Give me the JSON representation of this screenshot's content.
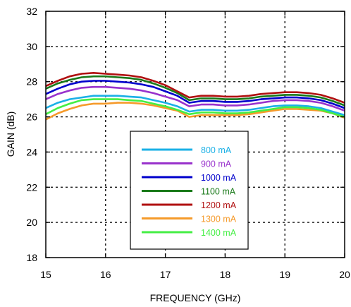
{
  "chart_data": {
    "type": "line",
    "xlabel": "FREQUENCY (GHz)",
    "ylabel": "GAIN (dB)",
    "xlim": [
      15,
      20
    ],
    "ylim": [
      18,
      32
    ],
    "xticks": [
      "15",
      "16",
      "17",
      "18",
      "19",
      "20"
    ],
    "yticks": [
      "18",
      "20",
      "22",
      "24",
      "26",
      "28",
      "30",
      "32"
    ],
    "grid": true,
    "legend_position": "center-bottom",
    "x": [
      15.0,
      15.2,
      15.4,
      15.6,
      15.8,
      16.0,
      16.2,
      16.4,
      16.6,
      16.8,
      17.0,
      17.2,
      17.4,
      17.6,
      17.8,
      18.0,
      18.2,
      18.4,
      18.6,
      18.8,
      19.0,
      19.2,
      19.4,
      19.6,
      19.8,
      20.0
    ],
    "series": [
      {
        "name": "800 mA",
        "color": "#1ab0e6",
        "values": [
          26.5,
          26.8,
          27.0,
          27.1,
          27.2,
          27.2,
          27.2,
          27.15,
          27.1,
          26.95,
          26.8,
          26.6,
          26.3,
          26.4,
          26.4,
          26.35,
          26.35,
          26.4,
          26.5,
          26.6,
          26.65,
          26.65,
          26.6,
          26.5,
          26.3,
          26.1
        ]
      },
      {
        "name": "900 mA",
        "color": "#9932cc",
        "values": [
          27.0,
          27.3,
          27.5,
          27.65,
          27.7,
          27.7,
          27.65,
          27.6,
          27.5,
          27.35,
          27.15,
          26.95,
          26.6,
          26.7,
          26.7,
          26.65,
          26.65,
          26.7,
          26.8,
          26.9,
          26.95,
          26.95,
          26.9,
          26.8,
          26.6,
          26.35
        ]
      },
      {
        "name": "1000 mA",
        "color": "#0000cc",
        "values": [
          27.3,
          27.6,
          27.85,
          28.0,
          28.05,
          28.05,
          28.0,
          27.95,
          27.85,
          27.7,
          27.45,
          27.2,
          26.8,
          26.9,
          26.9,
          26.85,
          26.85,
          26.9,
          27.0,
          27.05,
          27.1,
          27.1,
          27.05,
          26.95,
          26.75,
          26.5
        ]
      },
      {
        "name": "1100 mA",
        "color": "#1a7a1a",
        "values": [
          27.6,
          27.9,
          28.1,
          28.25,
          28.3,
          28.3,
          28.25,
          28.2,
          28.1,
          27.9,
          27.65,
          27.35,
          26.95,
          27.05,
          27.05,
          27.0,
          27.0,
          27.05,
          27.15,
          27.2,
          27.25,
          27.25,
          27.2,
          27.1,
          26.9,
          26.65
        ]
      },
      {
        "name": "1200 mA",
        "color": "#b01010",
        "values": [
          27.75,
          28.05,
          28.3,
          28.45,
          28.5,
          28.45,
          28.4,
          28.35,
          28.25,
          28.05,
          27.8,
          27.45,
          27.1,
          27.2,
          27.2,
          27.15,
          27.15,
          27.2,
          27.3,
          27.35,
          27.4,
          27.4,
          27.35,
          27.25,
          27.05,
          26.8
        ]
      },
      {
        "name": "1300 mA",
        "color": "#f59a2a",
        "values": [
          25.85,
          26.2,
          26.45,
          26.65,
          26.75,
          26.75,
          26.8,
          26.8,
          26.75,
          26.65,
          26.5,
          26.35,
          26.0,
          26.1,
          26.1,
          26.1,
          26.1,
          26.15,
          26.25,
          26.35,
          26.45,
          26.45,
          26.4,
          26.35,
          26.2,
          25.95
        ]
      },
      {
        "name": "1400 mA",
        "color": "#44ee44",
        "values": [
          26.15,
          26.5,
          26.75,
          26.95,
          27.0,
          27.0,
          27.0,
          26.95,
          26.9,
          26.75,
          26.6,
          26.4,
          26.15,
          26.25,
          26.25,
          26.2,
          26.2,
          26.25,
          26.35,
          26.45,
          26.55,
          26.55,
          26.5,
          26.4,
          26.2,
          26.0
        ]
      }
    ]
  }
}
